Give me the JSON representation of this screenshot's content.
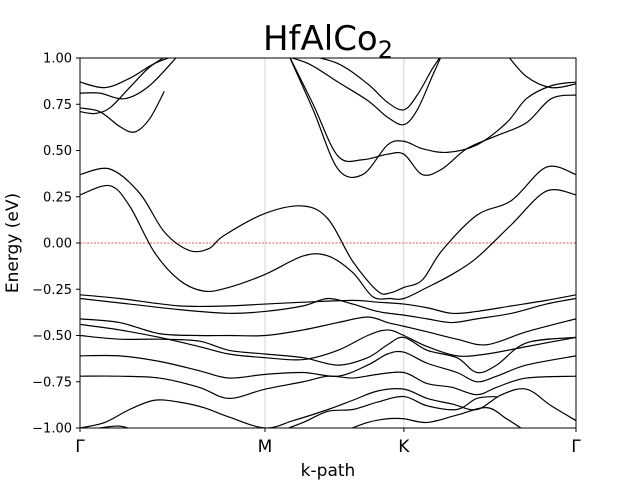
{
  "chart_data": {
    "type": "line",
    "title": "HfAlCo",
    "title_subscript": "2",
    "xlabel": "k-path",
    "ylabel": "Energy (eV)",
    "ylim": [
      -1.0,
      1.0
    ],
    "xlim": [
      0,
      1
    ],
    "y_ticks": [
      "1.00",
      "0.75",
      "0.50",
      "0.25",
      "0.00",
      "−0.25",
      "−0.50",
      "−0.75",
      "−1.00"
    ],
    "y_tick_values": [
      1.0,
      0.75,
      0.5,
      0.25,
      0.0,
      -0.25,
      -0.5,
      -0.75,
      -1.0
    ],
    "kpoints": [
      {
        "label": "Γ",
        "x": 0.0
      },
      {
        "label": "M",
        "x": 0.373
      },
      {
        "label": "K",
        "x": 0.653
      },
      {
        "label": "Γ",
        "x": 1.0
      }
    ],
    "fermi_level": 0.0,
    "line_color": "#000000",
    "fermi_color": "#d62728",
    "vline_color": "#c8c8c8",
    "bands": [
      {
        "x": [
          0,
          0.05,
          0.1,
          0.15,
          0.2
        ],
        "y": [
          0.87,
          0.84,
          0.89,
          0.97,
          1.02
        ]
      },
      {
        "x": [
          0,
          0.04,
          0.09,
          0.14,
          0.2
        ],
        "y": [
          0.81,
          0.81,
          0.78,
          0.85,
          1.02
        ]
      },
      {
        "x": [
          0,
          0.04,
          0.08,
          0.11,
          0.14,
          0.17
        ],
        "y": [
          0.73,
          0.71,
          0.63,
          0.6,
          0.67,
          0.82
        ]
      },
      {
        "x": [
          0,
          0.03,
          0.06,
          0.1,
          0.14,
          0.18
        ],
        "y": [
          0.71,
          0.7,
          0.73,
          0.84,
          0.95,
          1.02
        ]
      },
      {
        "x": [
          0,
          0.06,
          0.12,
          0.17,
          0.22,
          0.26,
          0.29,
          0.373,
          0.45,
          0.5,
          0.55,
          0.6,
          0.625,
          0.653,
          0.69,
          0.73,
          0.8,
          0.87,
          0.94,
          1.0
        ],
        "y": [
          0.37,
          0.4,
          0.27,
          0.06,
          -0.04,
          -0.03,
          0.04,
          0.16,
          0.2,
          0.13,
          -0.1,
          -0.26,
          -0.27,
          -0.24,
          -0.2,
          -0.04,
          0.15,
          0.23,
          0.41,
          0.37
        ]
      },
      {
        "x": [
          0,
          0.06,
          0.1,
          0.15,
          0.2,
          0.25,
          0.3,
          0.373,
          0.45,
          0.5,
          0.55,
          0.59,
          0.625,
          0.653,
          0.7,
          0.75,
          0.8,
          0.87,
          0.94,
          1.0
        ],
        "y": [
          0.26,
          0.31,
          0.2,
          -0.05,
          -0.2,
          -0.26,
          -0.24,
          -0.17,
          -0.07,
          -0.07,
          -0.16,
          -0.29,
          -0.3,
          -0.3,
          -0.24,
          -0.17,
          -0.08,
          0.1,
          0.28,
          0.26
        ]
      },
      {
        "x": [
          0.42,
          0.47,
          0.52,
          0.57,
          0.62,
          0.653,
          0.69,
          0.73,
          0.78,
          0.84,
          0.9,
          0.95,
          1.0
        ],
        "y": [
          1.02,
          0.75,
          0.47,
          0.45,
          0.48,
          0.48,
          0.37,
          0.4,
          0.51,
          0.58,
          0.65,
          0.78,
          0.8
        ]
      },
      {
        "x": [
          0.42,
          0.47,
          0.52,
          0.57,
          0.62,
          0.653,
          0.69,
          0.74,
          0.8,
          0.86,
          0.9,
          0.95,
          1.0
        ],
        "y": [
          1.02,
          0.72,
          0.4,
          0.37,
          0.53,
          0.55,
          0.51,
          0.49,
          0.53,
          0.65,
          0.78,
          0.85,
          0.87
        ]
      },
      {
        "x": [
          0.4,
          0.46,
          0.52,
          0.58,
          0.62,
          0.653,
          0.68,
          0.71,
          0.73
        ],
        "y": [
          1.02,
          0.97,
          0.87,
          0.77,
          0.68,
          0.64,
          0.72,
          0.9,
          1.02
        ]
      },
      {
        "x": [
          0.45,
          0.52,
          0.58,
          0.62,
          0.653,
          0.68,
          0.71,
          0.73
        ],
        "y": [
          1.02,
          0.97,
          0.86,
          0.76,
          0.72,
          0.8,
          0.94,
          1.02
        ]
      },
      {
        "x": [
          0.86,
          0.9,
          0.95,
          1.0
        ],
        "y": [
          1.02,
          0.9,
          0.84,
          0.86
        ]
      },
      {
        "x": [
          0,
          0.08,
          0.2,
          0.3,
          0.373,
          0.45,
          0.55,
          0.6,
          0.653,
          0.7,
          0.75,
          0.8,
          0.87,
          0.94,
          1.0
        ],
        "y": [
          -0.28,
          -0.3,
          -0.34,
          -0.34,
          -0.33,
          -0.32,
          -0.31,
          -0.32,
          -0.33,
          -0.35,
          -0.38,
          -0.37,
          -0.34,
          -0.31,
          -0.28
        ]
      },
      {
        "x": [
          0,
          0.1,
          0.2,
          0.3,
          0.373,
          0.45,
          0.5,
          0.55,
          0.6,
          0.653,
          0.7,
          0.75,
          0.8,
          0.87,
          0.94,
          1.0
        ],
        "y": [
          -0.3,
          -0.33,
          -0.36,
          -0.38,
          -0.37,
          -0.34,
          -0.3,
          -0.33,
          -0.37,
          -0.39,
          -0.41,
          -0.43,
          -0.41,
          -0.38,
          -0.33,
          -0.3
        ]
      },
      {
        "x": [
          0,
          0.08,
          0.16,
          0.24,
          0.3,
          0.373,
          0.45,
          0.52,
          0.58,
          0.62,
          0.653,
          0.7,
          0.76,
          0.82,
          0.9,
          1.0
        ],
        "y": [
          -0.41,
          -0.43,
          -0.49,
          -0.5,
          -0.5,
          -0.5,
          -0.47,
          -0.43,
          -0.4,
          -0.43,
          -0.45,
          -0.48,
          -0.52,
          -0.55,
          -0.48,
          -0.41
        ]
      },
      {
        "x": [
          0,
          0.08,
          0.16,
          0.24,
          0.3,
          0.373,
          0.45,
          0.52,
          0.58,
          0.62,
          0.653,
          0.7,
          0.76,
          0.82,
          0.9,
          1.0
        ],
        "y": [
          -0.44,
          -0.47,
          -0.51,
          -0.56,
          -0.6,
          -0.62,
          -0.63,
          -0.58,
          -0.5,
          -0.47,
          -0.5,
          -0.56,
          -0.61,
          -0.6,
          -0.56,
          -0.51
        ]
      },
      {
        "x": [
          0,
          0.08,
          0.16,
          0.24,
          0.3,
          0.373,
          0.45,
          0.52,
          0.58,
          0.62,
          0.653,
          0.7,
          0.76,
          0.8,
          0.84,
          0.9,
          1.0
        ],
        "y": [
          -0.5,
          -0.52,
          -0.52,
          -0.53,
          -0.58,
          -0.6,
          -0.62,
          -0.66,
          -0.62,
          -0.55,
          -0.51,
          -0.58,
          -0.62,
          -0.7,
          -0.66,
          -0.54,
          -0.51
        ]
      },
      {
        "x": [
          0,
          0.08,
          0.16,
          0.24,
          0.3,
          0.373,
          0.45,
          0.52,
          0.58,
          0.62,
          0.653,
          0.7,
          0.76,
          0.8,
          0.84,
          0.9,
          1.0
        ],
        "y": [
          -0.61,
          -0.61,
          -0.64,
          -0.69,
          -0.73,
          -0.71,
          -0.7,
          -0.72,
          -0.66,
          -0.6,
          -0.59,
          -0.65,
          -0.7,
          -0.75,
          -0.72,
          -0.66,
          -0.61
        ]
      },
      {
        "x": [
          0,
          0.08,
          0.16,
          0.24,
          0.3,
          0.373,
          0.45,
          0.5,
          0.55,
          0.6,
          0.653,
          0.7,
          0.75,
          0.8,
          0.84,
          0.9,
          1.0
        ],
        "y": [
          -0.72,
          -0.72,
          -0.73,
          -0.78,
          -0.84,
          -0.79,
          -0.75,
          -0.72,
          -0.73,
          -0.71,
          -0.7,
          -0.76,
          -0.78,
          -0.82,
          -0.78,
          -0.73,
          -0.72
        ]
      },
      {
        "x": [
          0,
          0.05,
          0.1,
          0.15,
          0.2,
          0.25,
          0.3,
          0.373,
          0.43,
          0.5,
          0.55,
          0.6,
          0.653,
          0.7,
          0.75,
          0.8,
          0.85,
          0.9,
          0.95,
          1.0
        ],
        "y": [
          -1.0,
          -0.97,
          -0.9,
          -0.85,
          -0.86,
          -0.89,
          -0.94,
          -1.0,
          -0.96,
          -0.9,
          -0.85,
          -0.8,
          -0.79,
          -0.84,
          -0.87,
          -0.9,
          -0.82,
          -0.79,
          -0.88,
          -0.96
        ]
      },
      {
        "x": [
          0.4,
          0.45,
          0.5,
          0.55,
          0.6,
          0.653,
          0.7,
          0.76,
          0.8,
          0.84
        ],
        "y": [
          -1.02,
          -0.97,
          -0.91,
          -0.9,
          -0.86,
          -0.83,
          -0.88,
          -0.9,
          -0.84,
          -0.83
        ]
      },
      {
        "x": [
          0.53,
          0.58,
          0.62,
          0.653,
          0.7,
          0.76,
          0.82,
          0.86,
          0.9
        ],
        "y": [
          -1.02,
          -0.97,
          -0.95,
          -0.95,
          -0.97,
          -0.93,
          -0.89,
          -0.95,
          -1.02
        ]
      },
      {
        "x": [
          0,
          0.04,
          0.08,
          0.12
        ],
        "y": [
          -1.02,
          -1.0,
          -0.99,
          -1.02
        ]
      },
      {
        "x": [
          0.3,
          0.36,
          0.42
        ],
        "y": [
          -1.02,
          -1.0,
          -1.02
        ]
      }
    ]
  }
}
